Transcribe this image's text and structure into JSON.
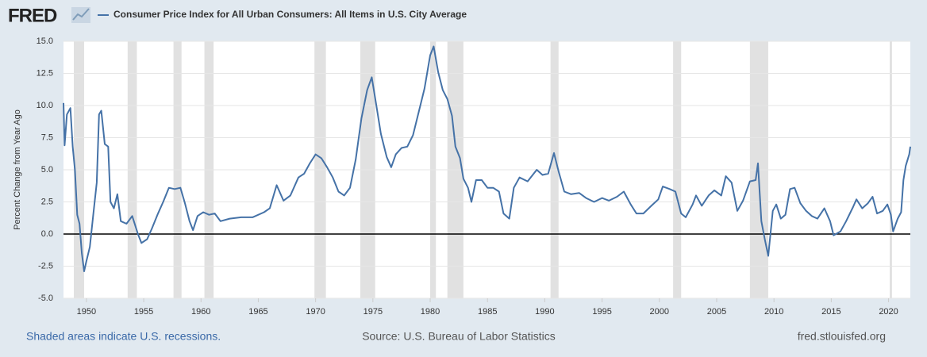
{
  "chart_data": {
    "type": "line",
    "logo": "FRED",
    "ylabel": "Percent Change from Year Ago",
    "note": "Shaded areas indicate U.S. recessions.",
    "source": "Source: U.S. Bureau of Labor Statistics",
    "site": "fred.stlouisfed.org",
    "xlim": [
      1948,
      2021.9
    ],
    "xticks": [
      1950,
      1955,
      1960,
      1965,
      1970,
      1975,
      1980,
      1985,
      1990,
      1995,
      2000,
      2005,
      2010,
      2015,
      2020
    ],
    "ylim": [
      -5,
      15
    ],
    "yticks": [
      {
        "value": 15,
        "label": "15.0"
      },
      12.5,
      {
        "value": 10,
        "label": "10.0"
      },
      7.5,
      {
        "value": 5,
        "label": "5.0"
      },
      2.5,
      {
        "value": 0,
        "label": "0.0"
      },
      -2.5,
      {
        "value": -5,
        "label": "-5.0"
      }
    ],
    "grid": true,
    "recessions": [
      [
        1948.9,
        1949.8
      ],
      [
        1953.6,
        1954.4
      ],
      [
        1957.6,
        1958.3
      ],
      [
        1960.3,
        1961.1
      ],
      [
        1969.9,
        1970.9
      ],
      [
        1973.9,
        1975.2
      ],
      [
        1980.0,
        1980.5
      ],
      [
        1981.5,
        1982.9
      ],
      [
        1990.5,
        1991.2
      ],
      [
        2001.2,
        2001.9
      ],
      [
        2007.9,
        2009.5
      ],
      [
        2020.1,
        2020.3
      ]
    ],
    "x": [
      1948.0,
      1948.1,
      1948.3,
      1948.6,
      1948.8,
      1949.0,
      1949.2,
      1949.4,
      1949.6,
      1949.8,
      1950.0,
      1950.3,
      1950.6,
      1950.9,
      1951.1,
      1951.3,
      1951.6,
      1951.9,
      1952.1,
      1952.4,
      1952.7,
      1953.0,
      1953.5,
      1954.0,
      1954.5,
      1954.8,
      1955.3,
      1955.7,
      1956.2,
      1956.7,
      1957.2,
      1957.7,
      1958.2,
      1958.6,
      1959.0,
      1959.3,
      1959.7,
      1960.2,
      1960.7,
      1961.2,
      1961.7,
      1962.5,
      1963.5,
      1964.5,
      1965.5,
      1966.0,
      1966.6,
      1967.2,
      1967.8,
      1968.5,
      1969.0,
      1969.5,
      1970.0,
      1970.5,
      1971.0,
      1971.5,
      1972.0,
      1972.5,
      1973.0,
      1973.5,
      1974.0,
      1974.5,
      1974.9,
      1975.3,
      1975.7,
      1976.2,
      1976.6,
      1977.0,
      1977.5,
      1978.0,
      1978.5,
      1979.0,
      1979.5,
      1980.0,
      1980.3,
      1980.7,
      1981.1,
      1981.5,
      1981.9,
      1982.2,
      1982.6,
      1982.9,
      1983.3,
      1983.6,
      1984.0,
      1984.5,
      1985.0,
      1985.5,
      1986.0,
      1986.4,
      1986.9,
      1987.3,
      1987.8,
      1988.5,
      1989.3,
      1989.8,
      1990.3,
      1990.8,
      1991.2,
      1991.7,
      1992.3,
      1993.0,
      1993.6,
      1994.3,
      1995.0,
      1995.6,
      1996.3,
      1996.9,
      1997.5,
      1998.0,
      1998.6,
      1999.3,
      1999.9,
      2000.3,
      2000.9,
      2001.4,
      2001.9,
      2002.3,
      2002.9,
      2003.2,
      2003.7,
      2004.3,
      2004.8,
      2005.4,
      2005.8,
      2006.3,
      2006.8,
      2007.3,
      2007.9,
      2008.4,
      2008.6,
      2008.9,
      2009.2,
      2009.5,
      2009.9,
      2010.2,
      2010.6,
      2011.0,
      2011.4,
      2011.8,
      2012.3,
      2012.8,
      2013.3,
      2013.8,
      2014.4,
      2014.9,
      2015.2,
      2015.8,
      2016.3,
      2016.9,
      2017.2,
      2017.7,
      2018.2,
      2018.6,
      2019.0,
      2019.5,
      2019.9,
      2020.2,
      2020.4,
      2020.8,
      2021.1,
      2021.3,
      2021.5,
      2021.8,
      2021.9
    ],
    "series": [
      {
        "name": "Consumer Price Index for All Urban Consumers: All Items in U.S. City Average",
        "color": "#4572a7",
        "values": [
          10.2,
          6.9,
          9.3,
          9.8,
          6.8,
          5.0,
          1.5,
          0.8,
          -1.5,
          -2.9,
          -2.1,
          -1.0,
          1.5,
          4.0,
          9.3,
          9.6,
          7.0,
          6.8,
          2.5,
          2.0,
          3.1,
          1.0,
          0.8,
          1.4,
          0.0,
          -0.7,
          -0.4,
          0.4,
          1.5,
          2.5,
          3.6,
          3.5,
          3.6,
          2.4,
          1.0,
          0.3,
          1.4,
          1.7,
          1.5,
          1.6,
          1.0,
          1.2,
          1.3,
          1.3,
          1.7,
          2.0,
          3.8,
          2.6,
          3.0,
          4.4,
          4.7,
          5.5,
          6.2,
          5.9,
          5.2,
          4.4,
          3.3,
          3.0,
          3.6,
          5.8,
          9.0,
          11.2,
          12.2,
          10.0,
          7.8,
          6.0,
          5.2,
          6.2,
          6.7,
          6.8,
          7.7,
          9.5,
          11.3,
          13.9,
          14.6,
          12.6,
          11.2,
          10.5,
          9.2,
          6.8,
          5.9,
          4.3,
          3.6,
          2.5,
          4.2,
          4.2,
          3.6,
          3.6,
          3.3,
          1.6,
          1.2,
          3.6,
          4.4,
          4.1,
          5.0,
          4.6,
          4.7,
          6.3,
          4.9,
          3.3,
          3.1,
          3.2,
          2.8,
          2.5,
          2.8,
          2.6,
          2.9,
          3.3,
          2.3,
          1.6,
          1.6,
          2.2,
          2.7,
          3.7,
          3.5,
          3.3,
          1.6,
          1.3,
          2.3,
          3.0,
          2.2,
          3.0,
          3.4,
          3.0,
          4.5,
          4.0,
          1.8,
          2.6,
          4.1,
          4.2,
          5.5,
          1.0,
          -0.4,
          -1.7,
          1.8,
          2.3,
          1.2,
          1.5,
          3.5,
          3.6,
          2.4,
          1.8,
          1.4,
          1.2,
          2.0,
          1.0,
          -0.1,
          0.2,
          1.0,
          2.1,
          2.7,
          2.0,
          2.4,
          2.9,
          1.6,
          1.8,
          2.3,
          1.5,
          0.2,
          1.2,
          1.7,
          4.2,
          5.3,
          6.2,
          6.8
        ]
      }
    ]
  }
}
